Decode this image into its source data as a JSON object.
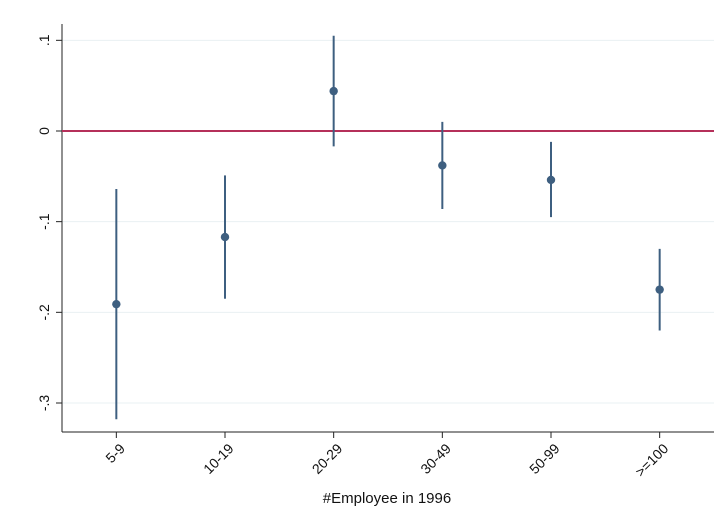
{
  "chart_data": {
    "type": "scatter",
    "title": "",
    "xlabel": "#Employee in 1996",
    "ylabel": "",
    "categories": [
      "5-9",
      "10-19",
      "20-29",
      "30-49",
      "50-99",
      ">=100"
    ],
    "yticks": [
      {
        "value": 0.1,
        "label": ".1"
      },
      {
        "value": 0,
        "label": "0"
      },
      {
        "value": -0.1,
        "label": "-.1"
      },
      {
        "value": -0.2,
        "label": "-.2"
      },
      {
        "value": -0.3,
        "label": "-.3"
      }
    ],
    "ylim": [
      -0.332,
      0.118
    ],
    "grid": true,
    "reference_line": {
      "y": 0,
      "color": "#b5305a"
    },
    "series": [
      {
        "estimates": [
          -0.191,
          -0.117,
          0.044,
          -0.038,
          -0.054,
          -0.175
        ],
        "ci_low": [
          -0.318,
          -0.185,
          -0.017,
          -0.086,
          -0.095,
          -0.22
        ],
        "ci_high": [
          -0.064,
          -0.049,
          0.105,
          0.01,
          -0.012,
          -0.13
        ],
        "color": "#3e5f80"
      }
    ]
  }
}
